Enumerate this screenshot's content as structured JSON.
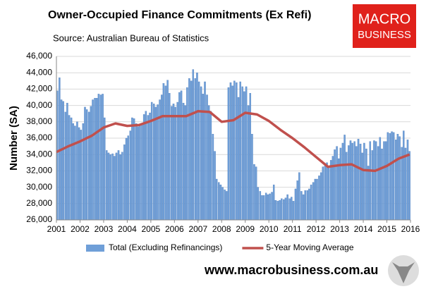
{
  "chart_data": {
    "type": "bar",
    "title": "Owner-Occupied Finance Commitments (Ex Refi)",
    "subtitle": "Source: Australian  Bureau of Statistics",
    "y_label": "Number (SA)",
    "x": [
      2001.04,
      2001.13,
      2001.21,
      2001.29,
      2001.38,
      2001.46,
      2001.54,
      2001.63,
      2001.71,
      2001.79,
      2001.88,
      2001.96,
      2002.04,
      2002.13,
      2002.21,
      2002.29,
      2002.38,
      2002.46,
      2002.54,
      2002.63,
      2002.71,
      2002.79,
      2002.88,
      2002.96,
      2003.04,
      2003.13,
      2003.21,
      2003.29,
      2003.38,
      2003.46,
      2003.54,
      2003.63,
      2003.71,
      2003.79,
      2003.88,
      2003.96,
      2004.04,
      2004.13,
      2004.21,
      2004.29,
      2004.38,
      2004.46,
      2004.54,
      2004.63,
      2004.71,
      2004.79,
      2004.88,
      2004.96,
      2005.04,
      2005.13,
      2005.21,
      2005.29,
      2005.38,
      2005.46,
      2005.54,
      2005.63,
      2005.71,
      2005.79,
      2005.88,
      2005.96,
      2006.04,
      2006.13,
      2006.21,
      2006.29,
      2006.38,
      2006.46,
      2006.54,
      2006.63,
      2006.71,
      2006.79,
      2006.88,
      2006.96,
      2007.04,
      2007.13,
      2007.21,
      2007.29,
      2007.38,
      2007.46,
      2007.54,
      2007.63,
      2007.71,
      2007.79,
      2007.88,
      2007.96,
      2008.04,
      2008.13,
      2008.21,
      2008.29,
      2008.38,
      2008.46,
      2008.54,
      2008.63,
      2008.71,
      2008.79,
      2008.88,
      2008.96,
      2009.04,
      2009.13,
      2009.21,
      2009.29,
      2009.38,
      2009.46,
      2009.54,
      2009.63,
      2009.71,
      2009.79,
      2009.88,
      2009.96,
      2010.04,
      2010.13,
      2010.21,
      2010.29,
      2010.38,
      2010.46,
      2010.54,
      2010.63,
      2010.71,
      2010.79,
      2010.88,
      2010.96,
      2011.04,
      2011.13,
      2011.21,
      2011.29,
      2011.38,
      2011.46,
      2011.54,
      2011.63,
      2011.71,
      2011.79,
      2011.88,
      2011.96,
      2012.04,
      2012.13,
      2012.21,
      2012.29,
      2012.38,
      2012.46,
      2012.54,
      2012.63,
      2012.71,
      2012.79,
      2012.88,
      2012.96,
      2013.04,
      2013.13,
      2013.21,
      2013.29,
      2013.38,
      2013.46,
      2013.54,
      2013.63,
      2013.71,
      2013.79,
      2013.88,
      2013.96,
      2014.04,
      2014.13,
      2014.21,
      2014.29,
      2014.38,
      2014.46,
      2014.54,
      2014.63,
      2014.71,
      2014.79,
      2014.88,
      2014.96,
      2015.04,
      2015.13,
      2015.21,
      2015.29,
      2015.38,
      2015.46,
      2015.54,
      2015.63,
      2015.71,
      2015.79,
      2015.88,
      2015.96
    ],
    "series": [
      {
        "name": "Total (Excluding Refinancings)",
        "color": "#6f9fd8",
        "values": [
          41800,
          43400,
          40700,
          40500,
          39200,
          40300,
          38800,
          38500,
          37800,
          37500,
          38000,
          37300,
          37000,
          37800,
          39800,
          39500,
          39200,
          39900,
          40700,
          40900,
          40900,
          41400,
          41300,
          41400,
          38500,
          34500,
          34200,
          34000,
          34100,
          33800,
          34200,
          34500,
          34000,
          34300,
          35200,
          36000,
          36300,
          36900,
          38500,
          38400,
          37800,
          37400,
          37500,
          37800,
          38900,
          39300,
          38800,
          39100,
          40400,
          40200,
          39800,
          40100,
          40700,
          41300,
          42700,
          42400,
          43100,
          41500,
          39900,
          40200,
          39800,
          40400,
          41600,
          41800,
          40300,
          40000,
          42200,
          43300,
          43000,
          44400,
          43300,
          44000,
          42900,
          42300,
          41400,
          42900,
          41300,
          40000,
          39300,
          36500,
          34400,
          31000,
          30600,
          30300,
          30000,
          29700,
          29500,
          42200,
          42800,
          42400,
          43000,
          42800,
          41000,
          42900,
          42300,
          41700,
          42300,
          40000,
          41500,
          36500,
          32800,
          32500,
          30000,
          29500,
          29000,
          29000,
          29300,
          29100,
          29200,
          29400,
          30300,
          28400,
          28300,
          28400,
          28600,
          28500,
          28700,
          29100,
          28600,
          28800,
          28300,
          29800,
          30800,
          31800,
          29500,
          29100,
          29600,
          29600,
          29800,
          30300,
          30600,
          31000,
          31000,
          31400,
          31800,
          32500,
          32600,
          33000,
          32500,
          33300,
          33800,
          34600,
          35000,
          33500,
          34800,
          35400,
          36400,
          34300,
          35100,
          35700,
          35400,
          35600,
          35000,
          35900,
          35300,
          34200,
          35400,
          34700,
          32600,
          35600,
          34500,
          35700,
          35600,
          35000,
          36100,
          34700,
          35600,
          35600,
          36700,
          36600,
          36800,
          36700,
          35800,
          36500,
          36200,
          34900,
          36900,
          34800,
          35800,
          34400
        ]
      },
      {
        "name": "5-Year Moving Average",
        "color": "#c0504d",
        "type": "line",
        "x": [
          2001.0,
          2001.5,
          2002.0,
          2002.5,
          2003.0,
          2003.5,
          2004.0,
          2004.5,
          2005.0,
          2005.5,
          2006.0,
          2006.5,
          2007.0,
          2007.5,
          2008.0,
          2008.5,
          2009.0,
          2009.5,
          2010.0,
          2010.5,
          2011.0,
          2011.5,
          2012.0,
          2012.5,
          2013.0,
          2013.5,
          2014.0,
          2014.5,
          2015.0,
          2015.5,
          2015.96
        ],
        "values": [
          34300,
          35000,
          35600,
          36300,
          37300,
          37800,
          37500,
          37600,
          38100,
          38700,
          38700,
          38700,
          39300,
          39200,
          38000,
          38200,
          39100,
          38900,
          38100,
          37000,
          36000,
          34900,
          33700,
          32500,
          32700,
          32800,
          32100,
          32000,
          32600,
          33500,
          34000
        ]
      }
    ],
    "xlim": [
      2001,
      2016
    ],
    "xticks": [
      2001,
      2002,
      2003,
      2004,
      2005,
      2006,
      2007,
      2008,
      2009,
      2010,
      2011,
      2012,
      2013,
      2014,
      2015,
      2016
    ],
    "ylim": [
      26000,
      46000
    ],
    "yticks": [
      {
        "value": 26000,
        "label": "26,000"
      },
      {
        "value": 28000,
        "label": "28,000"
      },
      {
        "value": 30000,
        "label": "30,000"
      },
      {
        "value": 32000,
        "label": "32,000"
      },
      {
        "value": 34000,
        "label": "34,000"
      },
      {
        "value": 36000,
        "label": "36,000"
      },
      {
        "value": 38000,
        "label": "38,000"
      },
      {
        "value": 40000,
        "label": "40,000"
      },
      {
        "value": 42000,
        "label": "42,000"
      },
      {
        "value": 44000,
        "label": "44,000"
      },
      {
        "value": 46000,
        "label": "46,000"
      }
    ],
    "grid": true,
    "legend": "bottom"
  },
  "logo": {
    "line1": "MACRO",
    "line2": "BUSINESS"
  },
  "footer": "www.macrobusiness.com.au"
}
